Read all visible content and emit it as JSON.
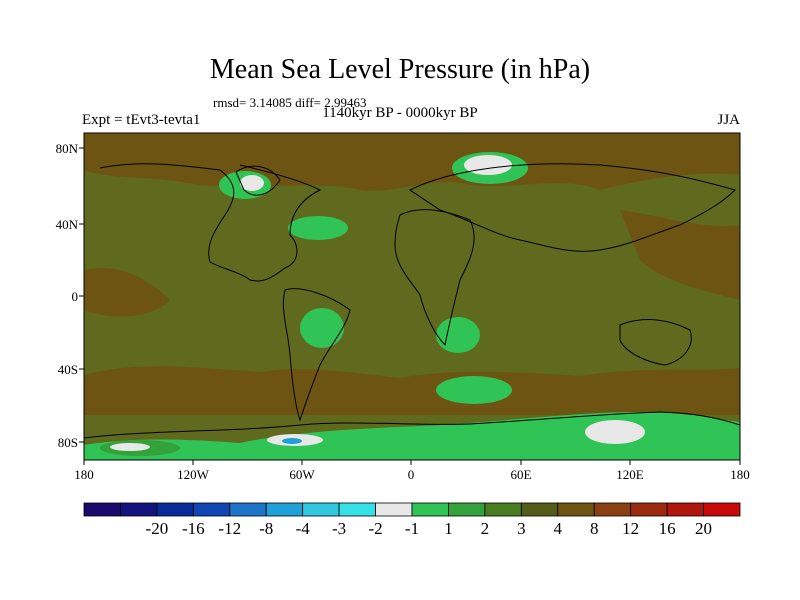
{
  "figure": {
    "title": "Mean Sea Level Pressure (in hPa)",
    "stats_line": "rmsd= 3.14085 diff= 2.99463",
    "experiment": "Expt = tEvt3-tevta1",
    "period": "1140kyr BP - 0000kyr BP",
    "season": "JJA"
  },
  "axes": {
    "lat_ticks": [
      "80N",
      "40N",
      "0",
      "40S",
      "80S"
    ],
    "lon_ticks": [
      "180",
      "120W",
      "60W",
      "0",
      "60E",
      "120E",
      "180"
    ]
  },
  "colorbar": {
    "colors": [
      "#1a0a6e",
      "#14147f",
      "#0a2a9a",
      "#1046b4",
      "#1e74c8",
      "#1fa0d8",
      "#2fc8e0",
      "#35e0e8",
      "#e8e8e8",
      "#2fc455",
      "#33a23a",
      "#4a7c22",
      "#555b18",
      "#6e5412",
      "#8a4010",
      "#9c2a0e",
      "#b0160c",
      "#c80a0a"
    ],
    "labels": [
      "-20",
      "-16",
      "-12",
      "-8",
      "-4",
      "-3",
      "-2",
      "-1",
      "1",
      "2",
      "3",
      "4",
      "8",
      "12",
      "16",
      "20"
    ]
  },
  "map_colors": {
    "background": "#5f6a1e",
    "warm_band": "#6e5412",
    "green_light": "#2fc455",
    "green_mid": "#33a23a",
    "white": "#e8e8e8",
    "blue": "#1fa0d8"
  }
}
